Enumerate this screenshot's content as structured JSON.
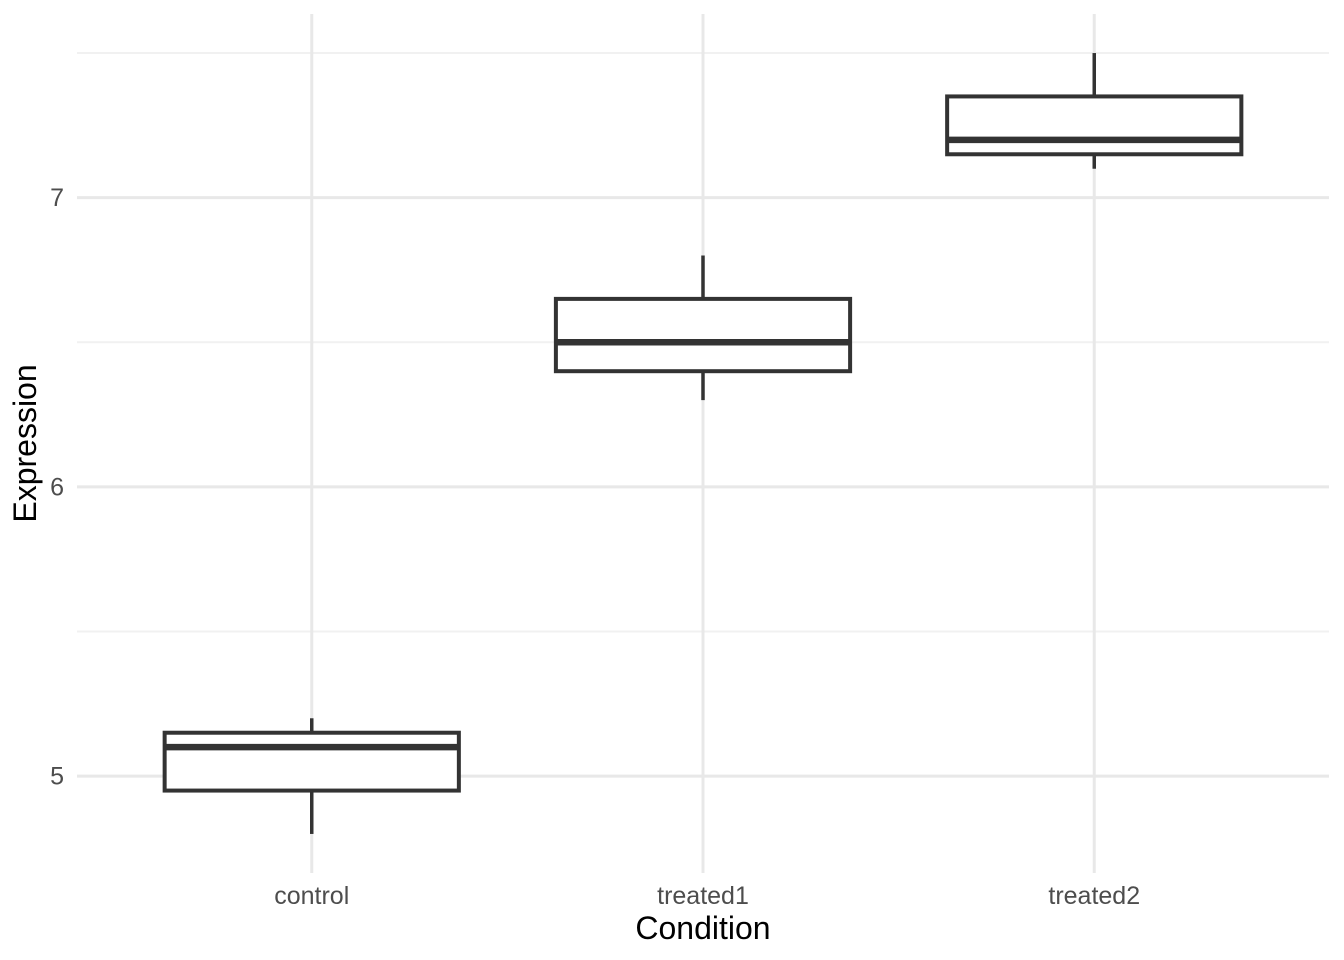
{
  "chart_data": {
    "type": "boxplot",
    "title": "",
    "xlabel": "Condition",
    "ylabel": "Expression",
    "categories": [
      "control",
      "treated1",
      "treated2"
    ],
    "series": [
      {
        "name": "control",
        "whisker_low": 4.8,
        "q1": 4.95,
        "median": 5.1,
        "q3": 5.15,
        "whisker_high": 5.2
      },
      {
        "name": "treated1",
        "whisker_low": 6.3,
        "q1": 6.4,
        "median": 6.5,
        "q3": 6.65,
        "whisker_high": 6.8
      },
      {
        "name": "treated2",
        "whisker_low": 7.1,
        "q1": 7.15,
        "median": 7.2,
        "q3": 7.35,
        "whisker_high": 7.5
      }
    ],
    "y_major_ticks": [
      5,
      6,
      7
    ],
    "y_major_tick_labels": [
      "5",
      "6",
      "7"
    ],
    "y_minor_gridlines": [
      5.5,
      6.5,
      7.5
    ],
    "ylim": [
      4.665,
      7.635
    ],
    "grid": "major+minor",
    "legend": "none",
    "style": {
      "background": "#FFFFFF",
      "grid_major_color": "#E8E8E8",
      "grid_minor_color": "#F1F1F1",
      "box_stroke": "#333333",
      "box_fill": "#FFFFFF",
      "axis_text_color": "#4D4D4D",
      "axis_title_color": "#000000"
    }
  }
}
